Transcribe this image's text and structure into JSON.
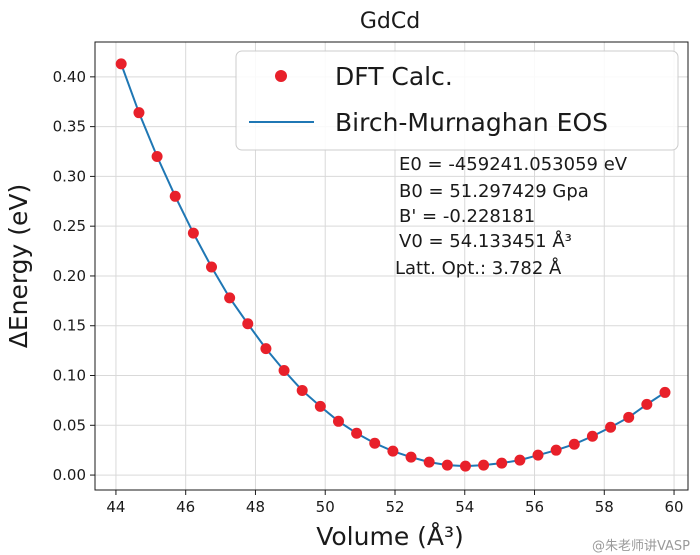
{
  "chart_data": {
    "type": "scatter",
    "title": "GdCd",
    "xlabel": "Volume (Å³)",
    "ylabel": "ΔEnergy (eV)",
    "xlim": [
      43.4,
      60.4
    ],
    "ylim": [
      -0.015,
      0.435
    ],
    "xticks": [
      44,
      46,
      48,
      50,
      52,
      54,
      56,
      58,
      60
    ],
    "yticks": [
      0.0,
      0.05,
      0.1,
      0.15,
      0.2,
      0.25,
      0.3,
      0.35,
      0.4
    ],
    "ytick_labels": [
      "0.00",
      "0.05",
      "0.10",
      "0.15",
      "0.20",
      "0.25",
      "0.30",
      "0.35",
      "0.40"
    ],
    "grid": true,
    "legend_position": "top-right",
    "series": [
      {
        "name": "DFT Calc.",
        "kind": "scatter",
        "color": "#e8202a",
        "x": [
          44.15,
          44.66,
          45.18,
          45.7,
          46.22,
          46.74,
          47.26,
          47.78,
          48.3,
          48.82,
          49.34,
          49.86,
          50.38,
          50.9,
          51.42,
          51.94,
          52.46,
          52.98,
          53.5,
          54.02,
          54.54,
          55.06,
          55.58,
          56.1,
          56.62,
          57.14,
          57.66,
          58.18,
          58.7,
          59.22,
          59.74
        ],
        "y": [
          0.413,
          0.364,
          0.32,
          0.28,
          0.243,
          0.209,
          0.178,
          0.152,
          0.127,
          0.105,
          0.085,
          0.069,
          0.054,
          0.042,
          0.032,
          0.024,
          0.018,
          0.013,
          0.01,
          0.009,
          0.01,
          0.012,
          0.015,
          0.02,
          0.025,
          0.031,
          0.039,
          0.048,
          0.058,
          0.071,
          0.083
        ]
      },
      {
        "name": "Birch-Murnaghan EOS",
        "kind": "line",
        "color": "#1f77b4",
        "x": [
          44.15,
          44.66,
          45.18,
          45.7,
          46.22,
          46.74,
          47.26,
          47.78,
          48.3,
          48.82,
          49.34,
          49.86,
          50.38,
          50.9,
          51.42,
          51.94,
          52.46,
          52.98,
          53.5,
          54.02,
          54.54,
          55.06,
          55.58,
          56.1,
          56.62,
          57.14,
          57.66,
          58.18,
          58.7,
          59.22,
          59.74
        ],
        "y": [
          0.413,
          0.364,
          0.32,
          0.28,
          0.243,
          0.209,
          0.178,
          0.152,
          0.127,
          0.105,
          0.085,
          0.069,
          0.054,
          0.042,
          0.032,
          0.024,
          0.018,
          0.013,
          0.01,
          0.009,
          0.01,
          0.012,
          0.015,
          0.02,
          0.025,
          0.031,
          0.039,
          0.048,
          0.058,
          0.071,
          0.083
        ]
      }
    ],
    "annotations": [
      "E0 = -459241.053059 eV",
      "B0 = 51.297429 Gpa",
      "B' = -0.228181",
      "V0 = 54.133451 Å³",
      "Latt. Opt.: 3.782 Å"
    ]
  },
  "watermark": "@朱老师讲VASP"
}
